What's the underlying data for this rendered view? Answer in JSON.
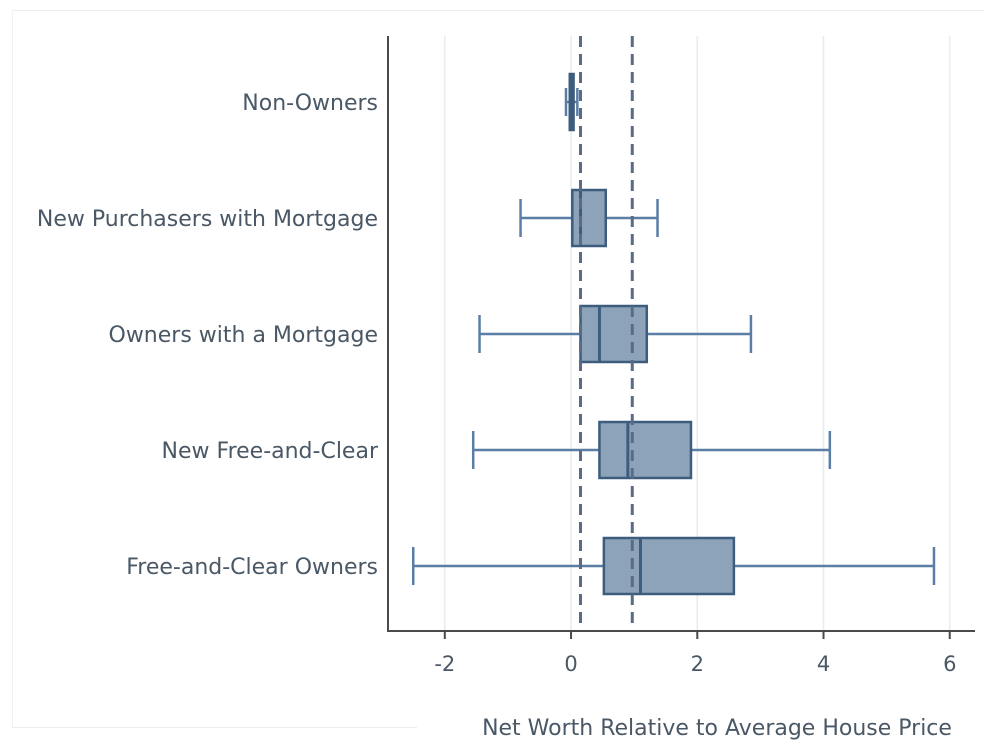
{
  "chart_data": {
    "type": "boxplot",
    "orientation": "horizontal",
    "title": "",
    "xlabel": "Net Worth Relative to Average House Price",
    "ylabel": "",
    "xlim": [
      -2.9,
      6.4
    ],
    "xticks": [
      -2,
      0,
      2,
      4,
      6
    ],
    "xtick_labels": [
      "-2",
      "0",
      "2",
      "4",
      "6"
    ],
    "grid": "vertical lines at x ticks",
    "reference_lines": [
      0.15,
      0.97
    ],
    "categories": [
      "Non-Owners",
      "New Purchasers with Mortgage",
      "Owners with a Mortgage",
      "New Free-and-Clear",
      "Free-and-Clear Owners"
    ],
    "boxes": [
      {
        "min": -0.08,
        "q1": -0.02,
        "median": 0.0,
        "q3": 0.04,
        "max": 0.1
      },
      {
        "min": -0.8,
        "q1": 0.02,
        "median": 0.15,
        "q3": 0.55,
        "max": 1.37
      },
      {
        "min": -1.45,
        "q1": 0.15,
        "median": 0.45,
        "q3": 1.2,
        "max": 2.85
      },
      {
        "min": -1.55,
        "q1": 0.45,
        "median": 0.9,
        "q3": 1.9,
        "max": 4.1
      },
      {
        "min": -2.5,
        "q1": 0.52,
        "median": 1.1,
        "q3": 2.58,
        "max": 5.75
      }
    ],
    "colors": {
      "box_fill": "#8da3b9",
      "box_stroke": "#3d5c7e",
      "whisker": "#5a7ea6",
      "reference_line": "#5a6b86",
      "grid": "#e4eeec",
      "axis": "#4a4a4a",
      "text": "#4a5866"
    }
  }
}
